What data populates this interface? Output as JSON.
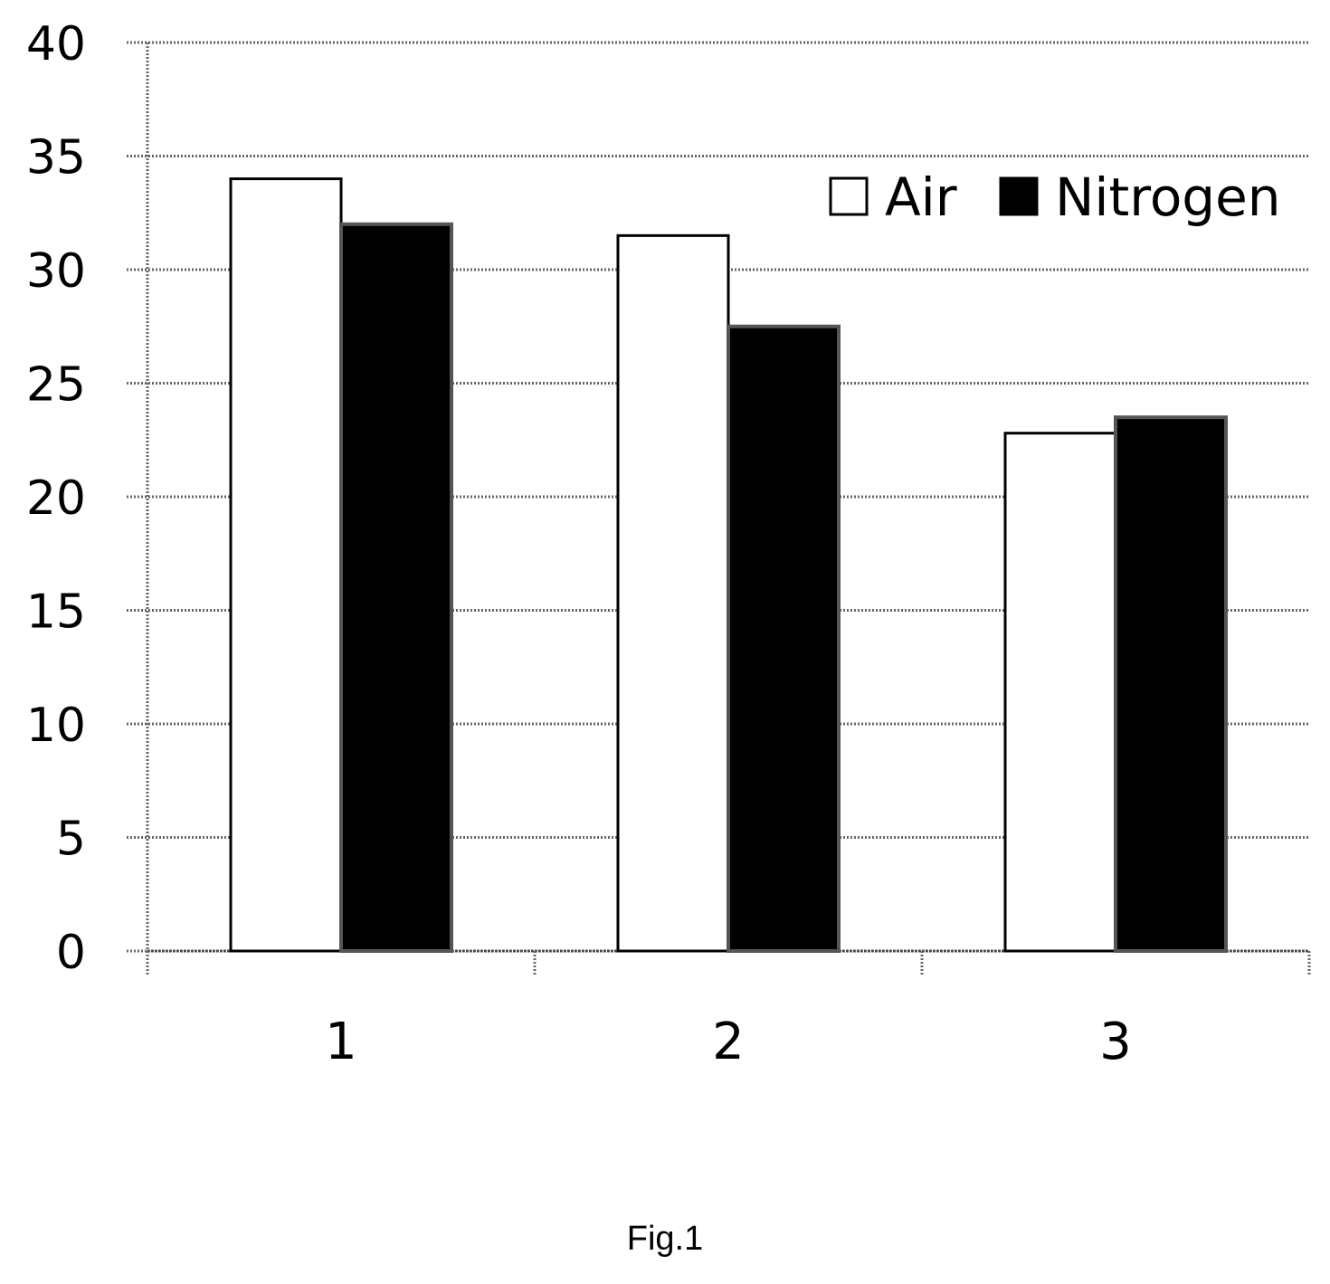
{
  "chart_data": {
    "type": "bar",
    "categories": [
      "1",
      "2",
      "3"
    ],
    "series": [
      {
        "name": "Air",
        "values": [
          34,
          31.5,
          22.8
        ],
        "fill": "#ffffff",
        "stroke": "#000000"
      },
      {
        "name": "Nitrogen",
        "values": [
          32,
          27.5,
          23.5
        ],
        "fill": "#000000",
        "stroke": "#555555"
      }
    ],
    "ylim": [
      0,
      40
    ],
    "yticks": [
      0,
      5,
      10,
      15,
      20,
      25,
      30,
      35,
      40
    ],
    "grid": true,
    "legend_position": "top-right",
    "title": "",
    "xlabel": "",
    "ylabel": ""
  },
  "caption": "Fig.1"
}
